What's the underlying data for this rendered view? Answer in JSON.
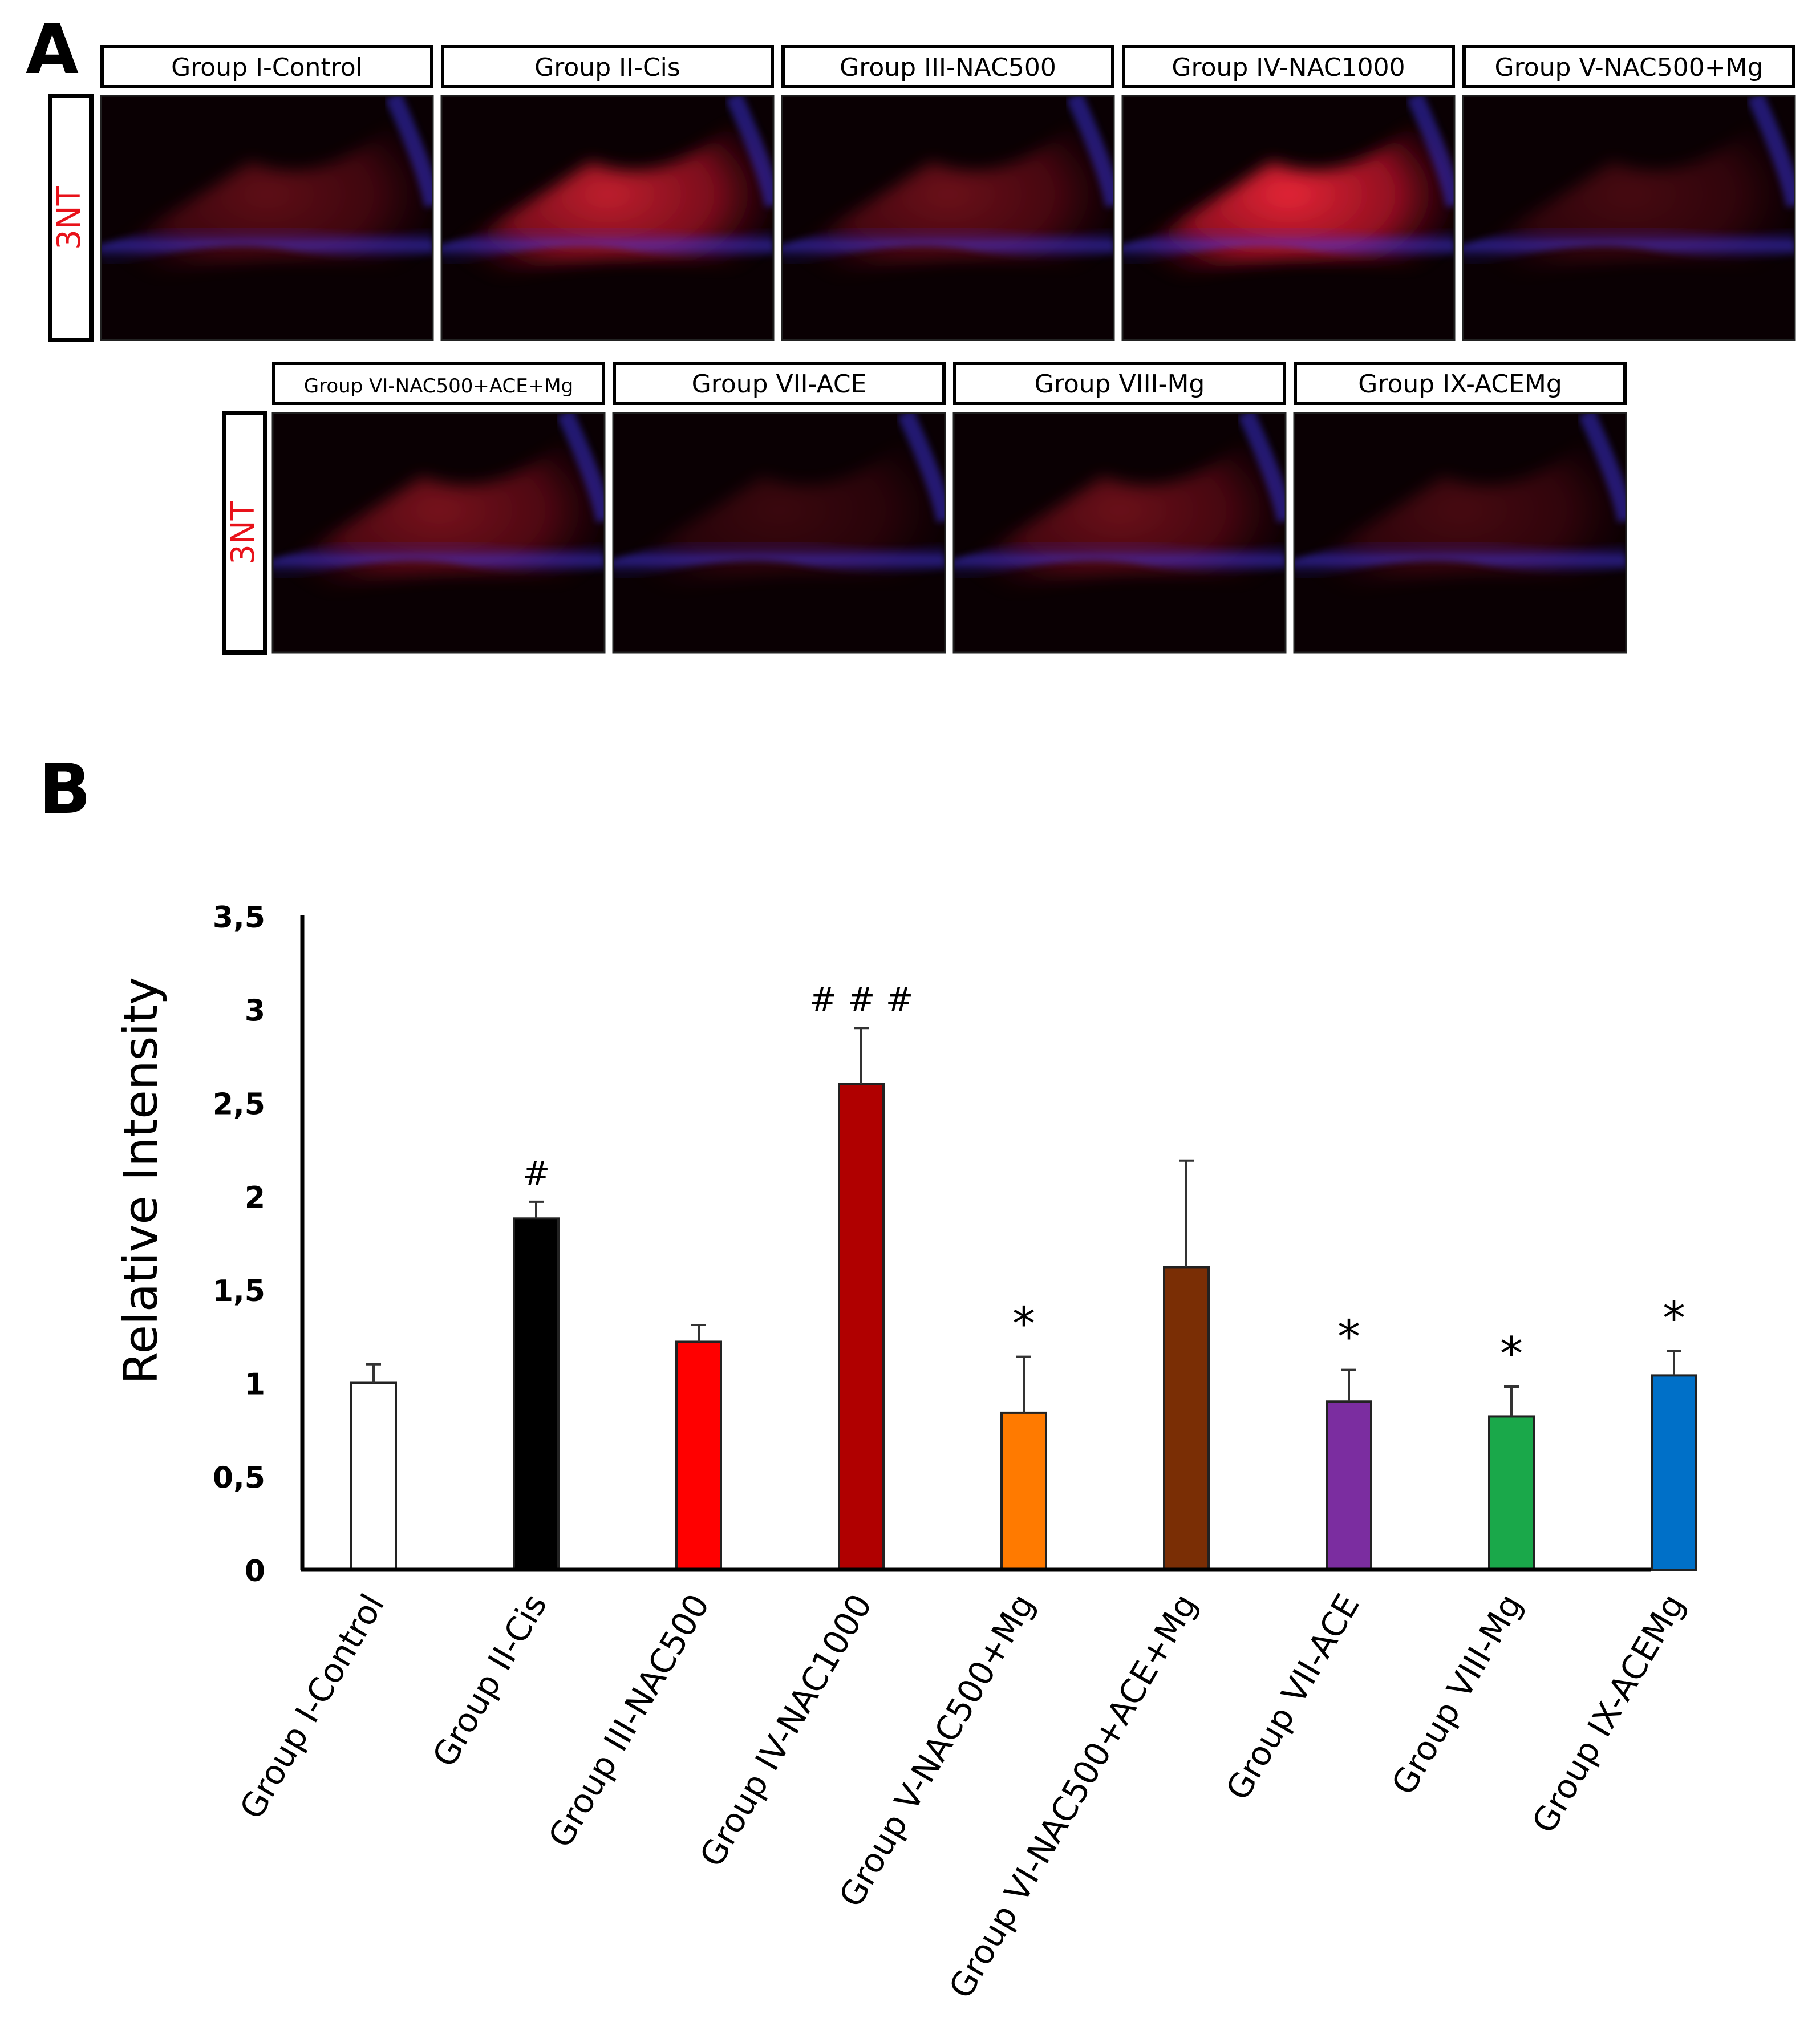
{
  "panel_a": {
    "letter": "A",
    "marker_label": "3NT",
    "marker_color": "#e8121a",
    "rows": [
      {
        "panels": [
          {
            "label": "Group I-Control",
            "intensity": 0.35
          },
          {
            "label": "Group II-Cis",
            "intensity": 0.75
          },
          {
            "label": "Group III-NAC500",
            "intensity": 0.4
          },
          {
            "label": "Group IV-NAC1000",
            "intensity": 0.9
          },
          {
            "label": "Group V-NAC500+Mg",
            "intensity": 0.25
          }
        ]
      },
      {
        "panels": [
          {
            "label": "Group VI-NAC500+ACE+Mg",
            "intensity": 0.45
          },
          {
            "label": "Group VII-ACE",
            "intensity": 0.2
          },
          {
            "label": "Group VIII-Mg",
            "intensity": 0.4
          },
          {
            "label": "Group IX-ACEMg",
            "intensity": 0.25
          }
        ]
      }
    ]
  },
  "chart_data": {
    "panel_letter": "B",
    "type": "bar",
    "ylabel": "Relative Intensity",
    "xlabel": "",
    "ylim": [
      0,
      3.5
    ],
    "yticks": [
      "0",
      "0,5",
      "1",
      "1,5",
      "2",
      "2,5",
      "3",
      "3,5"
    ],
    "ytick_values": [
      0,
      0.5,
      1,
      1.5,
      2,
      2.5,
      3,
      3.5
    ],
    "categories": [
      "Group I-Control",
      "Group II-Cis",
      "Group III-NAC500",
      "Group IV-NAC1000",
      "Group V-NAC500+Mg",
      "Group VI-NAC500+ACE+Mg",
      "Group VII-ACE",
      "Group VIII-Mg",
      "Group IX-ACEMg"
    ],
    "values": [
      1.0,
      1.88,
      1.22,
      2.6,
      0.84,
      1.62,
      0.9,
      0.82,
      1.04
    ],
    "errors": [
      0.1,
      0.09,
      0.09,
      0.3,
      0.3,
      0.57,
      0.17,
      0.16,
      0.13
    ],
    "annotations": [
      "",
      "#",
      "",
      "# # #",
      "*",
      "",
      "*",
      "*",
      "*"
    ],
    "colors": [
      "#ffffff",
      "#000000",
      "#ff0000",
      "#b00000",
      "#ff7a00",
      "#7a2e05",
      "#7b2da0",
      "#1aa84a",
      "#0070c8"
    ],
    "grid": false
  }
}
